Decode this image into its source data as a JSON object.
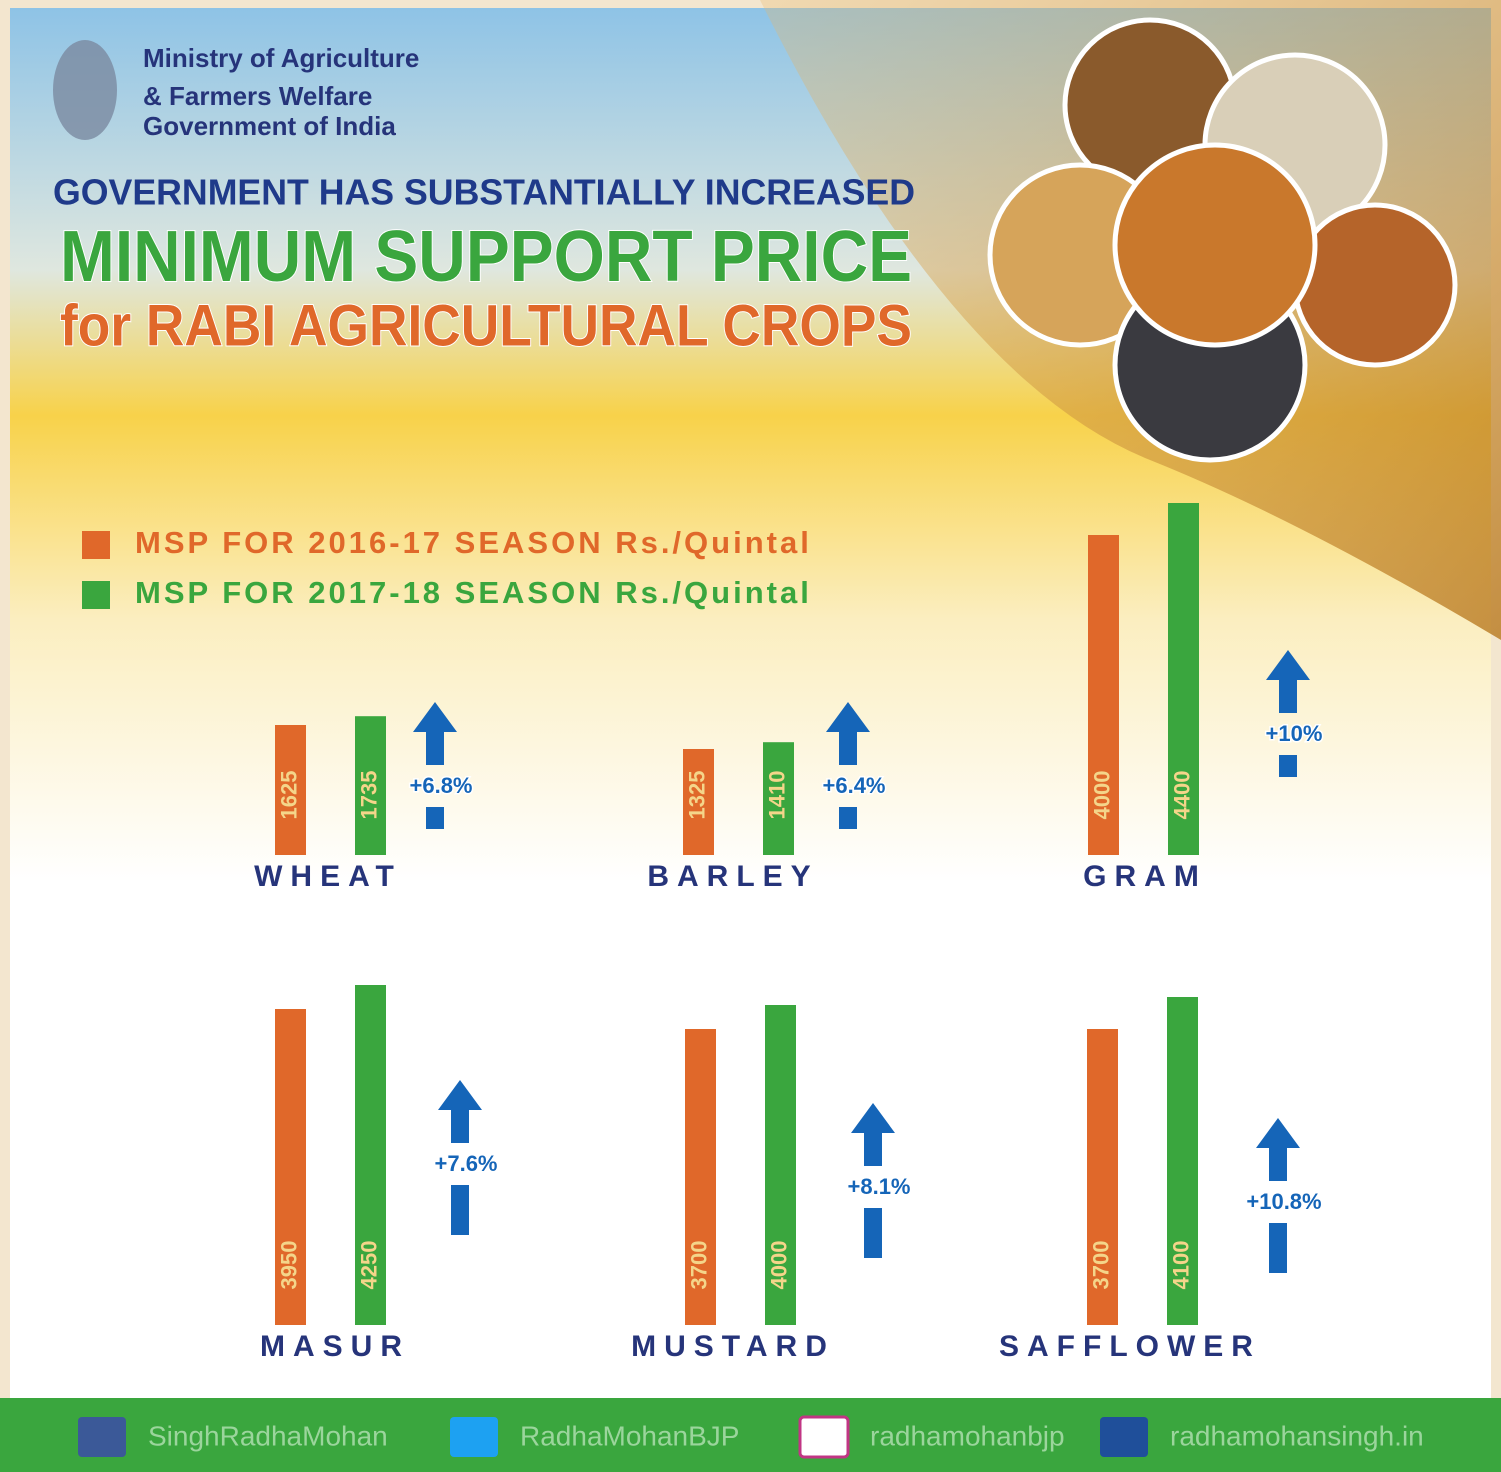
{
  "header": {
    "ministry": [
      "Ministry of Agriculture",
      "& Farmers Welfare",
      "Government of India"
    ],
    "headline": "GOVERNMENT HAS SUBSTANTIALLY INCREASED",
    "title": "MINIMUM SUPPORT PRICE",
    "subtitle": "for RABI AGRICULTURAL CROPS"
  },
  "chart_data": {
    "type": "bar",
    "categories": [
      "WHEAT",
      "BARLEY",
      "GRAM",
      "MASUR",
      "MUSTARD",
      "SAFFLOWER"
    ],
    "series": [
      {
        "name": "MSP FOR 2016-17 SEASON Rs./Quintal",
        "color": "#e0682a",
        "values": [
          1625,
          1325,
          4000,
          3950,
          3700,
          3700
        ]
      },
      {
        "name": "MSP FOR 2017-18 SEASON Rs./Quintal",
        "color": "#3aa63e",
        "values": [
          1735,
          1410,
          4400,
          4250,
          4000,
          4100
        ]
      }
    ],
    "change_labels": [
      "+6.8%",
      "+6.4%",
      "+10%",
      "+7.6%",
      "+8.1%",
      "+10.8%"
    ]
  },
  "footer": {
    "social": [
      "SinghRadhaMohan",
      "RadhaMohanBJP",
      "radhamohanbjp",
      "radhamohansingh.in"
    ]
  }
}
